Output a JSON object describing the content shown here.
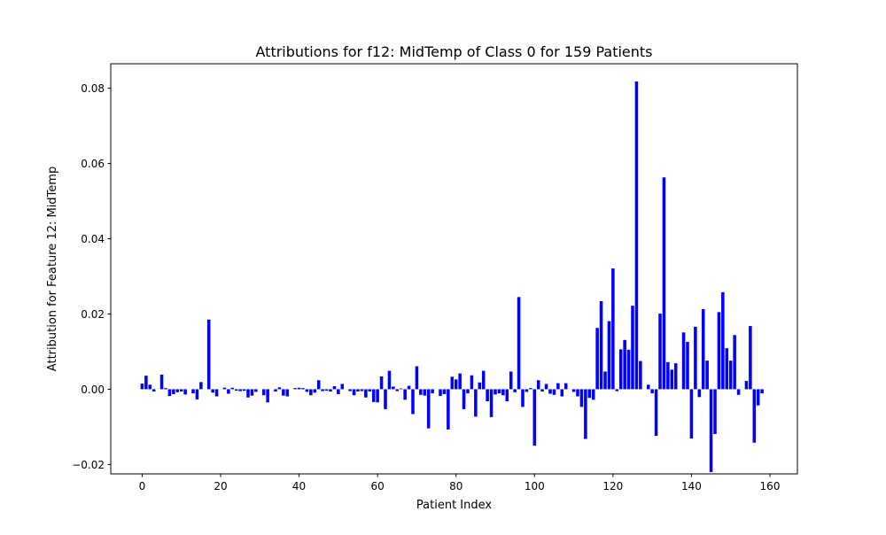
{
  "chart_data": {
    "type": "bar",
    "title": "Attributions for f12: MidTemp of Class 0 for 159 Patients",
    "xlabel": "Patient Index",
    "ylabel": "Attribution for Feature 12: MidTemp",
    "xlim": [
      -8,
      167
    ],
    "ylim": [
      -0.0225,
      0.0865
    ],
    "xticks": [
      0,
      20,
      40,
      60,
      80,
      100,
      120,
      140,
      160
    ],
    "xtick_labels": [
      "0",
      "20",
      "40",
      "60",
      "80",
      "100",
      "120",
      "140",
      "160"
    ],
    "yticks": [
      -0.02,
      0.0,
      0.02,
      0.04,
      0.06,
      0.08
    ],
    "ytick_labels": [
      "−0.02",
      "0.00",
      "0.02",
      "0.04",
      "0.06",
      "0.08"
    ],
    "grid": false,
    "bar_color": "#0000ff",
    "x_start": 0,
    "values": [
      0.0015,
      0.0036,
      0.0012,
      -0.0006,
      0.0,
      0.0039,
      0.0003,
      -0.0018,
      -0.0013,
      -0.0008,
      -0.0006,
      -0.0014,
      0.0,
      -0.0011,
      -0.0027,
      0.0019,
      0.0,
      0.0185,
      -0.0009,
      -0.0019,
      0.0,
      0.0004,
      -0.0012,
      0.0004,
      -0.0004,
      -0.0005,
      -0.0004,
      -0.0022,
      -0.0017,
      -0.0007,
      0.0,
      -0.0016,
      -0.0035,
      0.0,
      -0.0006,
      0.0005,
      -0.0017,
      -0.0019,
      0.0,
      0.0003,
      0.0004,
      0.0003,
      -0.0007,
      -0.0016,
      -0.0009,
      0.0024,
      -0.0005,
      -0.0004,
      -0.0006,
      0.0008,
      -0.0013,
      0.0014,
      0.0,
      -0.0005,
      -0.0016,
      -0.0006,
      -0.0005,
      -0.0022,
      -0.0006,
      -0.0034,
      -0.0035,
      0.0034,
      -0.0053,
      0.0049,
      0.0007,
      -0.0005,
      0.0002,
      -0.0028,
      0.0009,
      -0.0066,
      0.0061,
      -0.0015,
      -0.0017,
      -0.0104,
      -0.0011,
      0.0,
      -0.0018,
      -0.0013,
      -0.0107,
      0.0033,
      0.0026,
      0.0042,
      -0.0053,
      -0.0011,
      0.0037,
      -0.0073,
      0.0018,
      0.0049,
      -0.0032,
      -0.0074,
      -0.0014,
      -0.0011,
      -0.0016,
      -0.0032,
      0.0047,
      -0.0008,
      0.0245,
      -0.0047,
      -0.0007,
      0.0003,
      -0.015,
      0.0024,
      -0.0006,
      0.0014,
      -0.0012,
      -0.0015,
      0.0016,
      -0.0019,
      0.0016,
      0.0,
      -0.0007,
      -0.0019,
      -0.0047,
      -0.0132,
      -0.0023,
      -0.0028,
      0.0163,
      0.0234,
      0.0047,
      0.0181,
      0.0321,
      -0.0005,
      0.0106,
      0.0131,
      0.0105,
      0.0222,
      0.0818,
      0.0075,
      0.0,
      0.0012,
      -0.0011,
      -0.0124,
      0.0201,
      0.0563,
      0.0072,
      0.0052,
      0.0069,
      0.0,
      0.0151,
      0.0126,
      -0.0131,
      0.0166,
      -0.0021,
      0.0213,
      0.0076,
      -0.022,
      -0.0119,
      0.0205,
      0.0258,
      0.0109,
      0.0076,
      0.0144,
      -0.0015,
      0.0,
      0.0022,
      0.0168,
      -0.0142,
      -0.0043,
      -0.0011
    ]
  }
}
